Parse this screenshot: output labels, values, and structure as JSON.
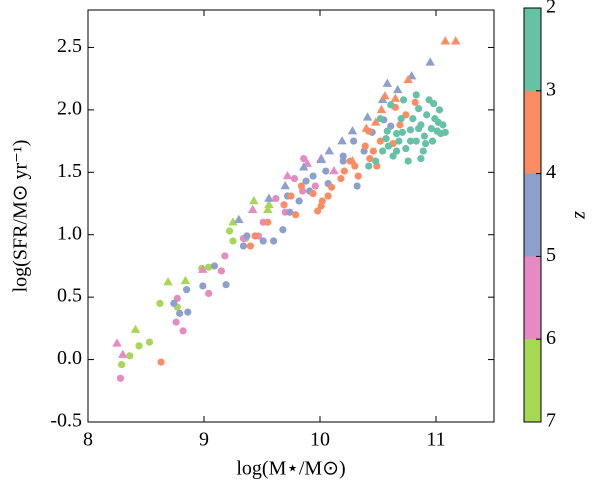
{
  "chart_data": {
    "type": "scatter",
    "x_label": "log(M⋆/M⊙)",
    "y_label": "log(SFR/M⊙ yr⁻¹)",
    "xlim": [
      8.0,
      11.5
    ],
    "ylim": [
      -0.5,
      2.8
    ],
    "xticks": [
      8,
      9,
      10,
      11
    ],
    "yticks": [
      -0.5,
      {
        "value": 0,
        "label": "0.0"
      },
      0.5,
      {
        "value": 1,
        "label": "1.0"
      },
      1.5,
      {
        "value": 2,
        "label": "2.0"
      },
      2.5
    ],
    "colorbar": {
      "label": "z",
      "lim": [
        2,
        7
      ],
      "ticks": [
        2,
        3,
        4,
        5,
        6,
        7
      ],
      "colors": [
        "#66c2a5",
        "#fc8d62",
        "#8da0cb",
        "#e78ac3",
        "#a6d854"
      ]
    },
    "series": [
      {
        "color": "#a6d854",
        "marker": "o",
        "x": [
          8.29,
          8.36,
          8.44,
          8.53,
          8.62,
          8.77,
          8.98,
          9.04,
          9.22,
          9.25,
          9.36
        ],
        "values": [
          -0.04,
          0.03,
          0.11,
          0.14,
          0.45,
          0.42,
          0.73,
          0.74,
          1.03,
          0.95,
          0.97
        ]
      },
      {
        "color": "#a6d854",
        "marker": "^",
        "x": [
          8.69,
          8.84,
          9.43,
          9.55,
          9.56,
          9.25,
          8.41
        ],
        "values": [
          0.62,
          0.63,
          1.27,
          1.2,
          1.24,
          1.1,
          0.24
        ]
      },
      {
        "color": "#e78ac3",
        "marker": "o",
        "x": [
          8.28,
          8.76,
          8.82,
          8.77,
          9.04,
          9.15,
          9.18,
          9.34,
          9.47,
          9.51,
          9.62,
          9.7,
          9.78,
          9.86,
          9.85,
          9.96
        ],
        "values": [
          -0.15,
          0.3,
          0.23,
          0.49,
          0.53,
          0.71,
          0.83,
          0.97,
          0.99,
          1.1,
          1.29,
          1.18,
          1.45,
          1.61,
          1.35,
          1.39
        ]
      },
      {
        "color": "#e78ac3",
        "marker": "^",
        "x": [
          8.25,
          8.3,
          9.42,
          9.72,
          10.01,
          9.89,
          10.12,
          8.99
        ],
        "values": [
          0.13,
          0.04,
          1.2,
          1.47,
          1.61,
          1.57,
          1.51,
          0.72
        ]
      },
      {
        "color": "#8da0cb",
        "marker": "o",
        "x": [
          8.85,
          8.86,
          8.74,
          8.79,
          8.99,
          9.09,
          9.19,
          9.34,
          9.37,
          9.51,
          9.6,
          9.68,
          9.72,
          9.74,
          9.82,
          9.91,
          9.94,
          10.05,
          10.07,
          10.2,
          10.2,
          10.29,
          10.38,
          10.45,
          10.55,
          10.61,
          10.32,
          9.88
        ],
        "values": [
          0.56,
          0.38,
          0.45,
          0.37,
          0.59,
          0.75,
          0.6,
          0.91,
          0.99,
          0.95,
          0.95,
          1.04,
          1.31,
          1.18,
          1.27,
          1.35,
          1.47,
          1.51,
          1.41,
          1.59,
          1.63,
          1.75,
          1.67,
          1.82,
          1.92,
          1.87,
          1.39,
          1.43
        ]
      },
      {
        "color": "#8da0cb",
        "marker": "^",
        "x": [
          9.3,
          9.56,
          9.7,
          9.86,
          10.01,
          10.08,
          10.19,
          10.28,
          10.41,
          10.54,
          10.67,
          10.79,
          10.95,
          10.58
        ],
        "values": [
          1.12,
          1.29,
          1.39,
          1.54,
          1.6,
          1.67,
          1.75,
          1.83,
          1.94,
          2.08,
          2.16,
          2.27,
          2.38,
          2.21
        ]
      },
      {
        "color": "#fc8d62",
        "marker": "o",
        "x": [
          8.63,
          9.4,
          9.44,
          9.55,
          9.69,
          9.75,
          9.79,
          9.84,
          9.94,
          9.98,
          10.02,
          10.07,
          10.1,
          10.18,
          10.21,
          10.26,
          10.3,
          10.33,
          10.39,
          10.43,
          10.46,
          10.52,
          10.42,
          10.49,
          10.63,
          10.69,
          10.74,
          10.82,
          10.65,
          10.01
        ],
        "values": [
          -0.02,
          0.91,
          0.99,
          1.1,
          1.24,
          1.31,
          1.16,
          1.39,
          1.33,
          1.19,
          1.27,
          1.31,
          1.38,
          1.45,
          1.51,
          1.59,
          1.55,
          1.47,
          1.71,
          1.61,
          1.67,
          1.75,
          1.83,
          1.55,
          1.73,
          1.88,
          1.96,
          2.06,
          2.02,
          1.23
        ]
      },
      {
        "color": "#fc8d62",
        "marker": "^",
        "x": [
          10.28,
          10.4,
          10.48,
          10.53,
          10.56,
          10.65,
          10.76,
          11.08,
          11.17
        ],
        "values": [
          1.59,
          1.85,
          1.9,
          2.0,
          2.11,
          2.09,
          2.24,
          2.55,
          2.55
        ]
      },
      {
        "color": "#66c2a5",
        "marker": "o",
        "x": [
          10.42,
          10.48,
          10.54,
          10.59,
          10.63,
          10.68,
          10.71,
          10.74,
          10.78,
          10.8,
          10.83,
          10.85,
          10.87,
          10.89,
          10.9,
          10.92,
          10.94,
          10.96,
          10.97,
          10.99,
          11.01,
          11.03,
          11.04,
          11.06,
          11.08,
          10.83,
          10.7,
          10.58,
          10.66,
          10.76,
          10.87,
          10.52,
          10.61,
          10.72,
          10.78,
          10.85,
          10.91,
          10.98,
          11.02,
          10.66,
          10.57
        ],
        "values": [
          1.55,
          1.59,
          1.67,
          1.71,
          1.63,
          1.75,
          1.82,
          1.69,
          1.84,
          1.93,
          1.75,
          2.01,
          1.88,
          1.67,
          1.79,
          1.96,
          2.08,
          1.85,
          1.75,
          1.93,
          1.83,
          2.0,
          1.81,
          1.88,
          1.82,
          2.12,
          1.93,
          1.83,
          1.81,
          1.59,
          1.61,
          1.93,
          2.04,
          2.08,
          1.75,
          1.85,
          1.73,
          2.05,
          1.9,
          1.67,
          1.77
        ]
      }
    ]
  }
}
